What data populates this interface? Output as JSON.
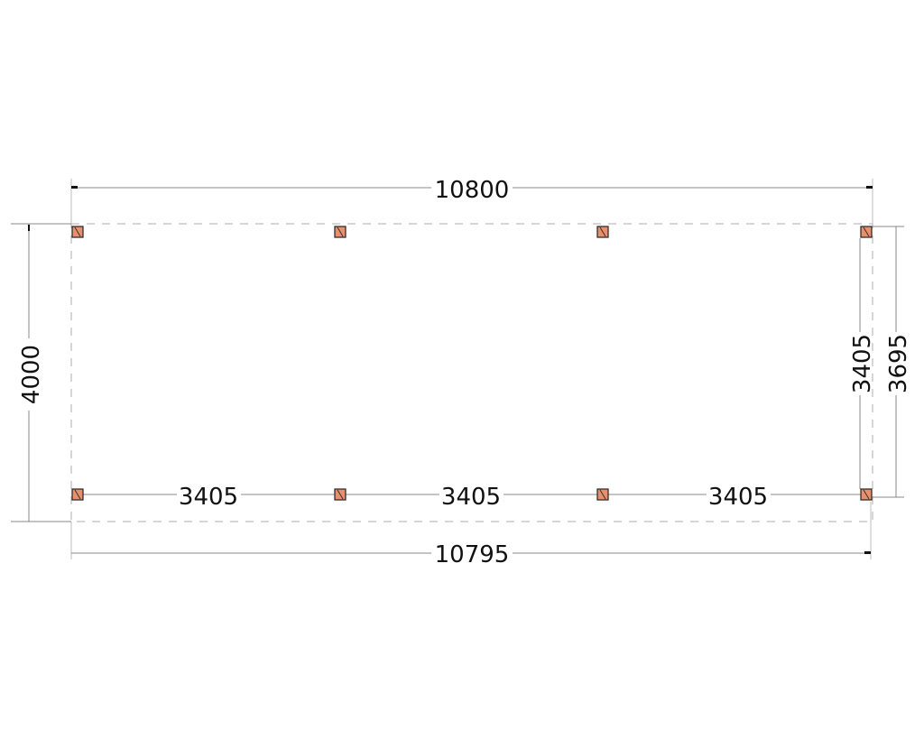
{
  "drawing": {
    "overall_width_top": "10800",
    "overall_width_bottom": "10795",
    "overall_depth": "4000",
    "post_spacing_labels": [
      "3405",
      "3405",
      "3405"
    ],
    "inner_depth": "3405",
    "outer_post_depth": "3695",
    "post_count": 8,
    "post_color": "#e8906e"
  }
}
